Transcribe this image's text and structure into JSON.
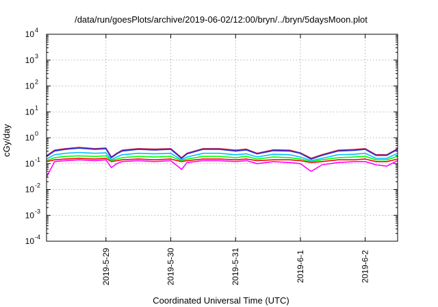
{
  "chart_data": {
    "type": "line",
    "title": "/data/run/goesPlots/archive/2019-06-02/12:00/bryn/../bryn/5daysMoon.plot",
    "xlabel": "Coordinated Universal Time (UTC)",
    "ylabel": "cGy/day",
    "yscale": "log",
    "ylim": [
      0.0001,
      10000
    ],
    "y_ticks": [
      {
        "base": "10",
        "exp": "-4",
        "value": 0.0001
      },
      {
        "base": "10",
        "exp": "-3",
        "value": 0.001
      },
      {
        "base": "10",
        "exp": "-2",
        "value": 0.01
      },
      {
        "base": "10",
        "exp": "-1",
        "value": 0.1
      },
      {
        "base": "10",
        "exp": "0",
        "value": 1
      },
      {
        "base": "10",
        "exp": "1",
        "value": 10
      },
      {
        "base": "10",
        "exp": "2",
        "value": 100
      },
      {
        "base": "10",
        "exp": "3",
        "value": 1000
      },
      {
        "base": "10",
        "exp": "4",
        "value": 10000
      }
    ],
    "x_range": [
      "2019-05-28T02:00",
      "2019-06-02T12:00"
    ],
    "x_ticks": [
      "2019-5-29",
      "2019-5-30",
      "2019-5-31",
      "2019-6-1",
      "2019-6-2"
    ],
    "grid": true,
    "legend": "none",
    "series": [
      {
        "color": "#ff00ff",
        "x": [
          "2019-05-28T02:00",
          "2019-05-28T05:00",
          "2019-05-28T09:00",
          "2019-05-28T14:00",
          "2019-05-28T20:00",
          "2019-05-29T00:00",
          "2019-05-29T02:00",
          "2019-05-29T04:00",
          "2019-05-29T06:00",
          "2019-05-29T12:00",
          "2019-05-29T18:00",
          "2019-05-30T00:00",
          "2019-05-30T04:00",
          "2019-05-30T06:00",
          "2019-05-30T12:00",
          "2019-05-30T18:00",
          "2019-05-31T00:00",
          "2019-05-31T04:00",
          "2019-05-31T08:00",
          "2019-05-31T14:00",
          "2019-05-31T20:00",
          "2019-06-01T00:00",
          "2019-06-01T04:00",
          "2019-06-01T08:00",
          "2019-06-01T14:00",
          "2019-06-01T20:00",
          "2019-06-02T00:00",
          "2019-06-02T04:00",
          "2019-06-02T08:00",
          "2019-06-02T12:00"
        ],
        "values": [
          0.03,
          0.12,
          0.13,
          0.14,
          0.13,
          0.14,
          0.07,
          0.1,
          0.12,
          0.13,
          0.12,
          0.13,
          0.06,
          0.11,
          0.13,
          0.13,
          0.12,
          0.13,
          0.1,
          0.12,
          0.11,
          0.1,
          0.05,
          0.09,
          0.11,
          0.12,
          0.12,
          0.09,
          0.08,
          0.13
        ]
      },
      {
        "color": "#ff0000",
        "x": [
          "2019-05-28T02:00",
          "2019-05-28T05:00",
          "2019-05-28T09:00",
          "2019-05-28T14:00",
          "2019-05-28T20:00",
          "2019-05-29T00:00",
          "2019-05-29T02:00",
          "2019-05-29T04:00",
          "2019-05-29T06:00",
          "2019-05-29T12:00",
          "2019-05-29T18:00",
          "2019-05-30T00:00",
          "2019-05-30T04:00",
          "2019-05-30T06:00",
          "2019-05-30T12:00",
          "2019-05-30T18:00",
          "2019-05-31T00:00",
          "2019-05-31T04:00",
          "2019-05-31T08:00",
          "2019-05-31T14:00",
          "2019-05-31T20:00",
          "2019-06-01T00:00",
          "2019-06-01T04:00",
          "2019-06-01T08:00",
          "2019-06-01T14:00",
          "2019-06-01T20:00",
          "2019-06-02T00:00",
          "2019-06-02T04:00",
          "2019-06-02T08:00",
          "2019-06-02T12:00"
        ],
        "values": [
          0.12,
          0.14,
          0.15,
          0.16,
          0.15,
          0.16,
          0.12,
          0.13,
          0.14,
          0.15,
          0.14,
          0.15,
          0.12,
          0.13,
          0.15,
          0.15,
          0.14,
          0.15,
          0.13,
          0.14,
          0.14,
          0.13,
          0.11,
          0.12,
          0.14,
          0.14,
          0.15,
          0.12,
          0.12,
          0.15
        ]
      },
      {
        "color": "#00ff00",
        "x": [
          "2019-05-28T02:00",
          "2019-05-28T05:00",
          "2019-05-28T09:00",
          "2019-05-28T14:00",
          "2019-05-28T20:00",
          "2019-05-29T00:00",
          "2019-05-29T02:00",
          "2019-05-29T04:00",
          "2019-05-29T06:00",
          "2019-05-29T12:00",
          "2019-05-29T18:00",
          "2019-05-30T00:00",
          "2019-05-30T04:00",
          "2019-05-30T06:00",
          "2019-05-30T12:00",
          "2019-05-30T18:00",
          "2019-05-31T00:00",
          "2019-05-31T04:00",
          "2019-05-31T08:00",
          "2019-05-31T14:00",
          "2019-05-31T20:00",
          "2019-06-01T00:00",
          "2019-06-01T04:00",
          "2019-06-01T08:00",
          "2019-06-01T14:00",
          "2019-06-01T20:00",
          "2019-06-02T00:00",
          "2019-06-02T04:00",
          "2019-06-02T08:00",
          "2019-06-02T12:00"
        ],
        "values": [
          0.13,
          0.17,
          0.19,
          0.2,
          0.19,
          0.2,
          0.13,
          0.15,
          0.17,
          0.19,
          0.18,
          0.19,
          0.13,
          0.15,
          0.19,
          0.19,
          0.17,
          0.19,
          0.15,
          0.18,
          0.17,
          0.15,
          0.12,
          0.14,
          0.17,
          0.18,
          0.19,
          0.14,
          0.14,
          0.19
        ]
      },
      {
        "color": "#00bfff",
        "x": [
          "2019-05-28T02:00",
          "2019-05-28T05:00",
          "2019-05-28T09:00",
          "2019-05-28T14:00",
          "2019-05-28T20:00",
          "2019-05-29T00:00",
          "2019-05-29T02:00",
          "2019-05-29T04:00",
          "2019-05-29T06:00",
          "2019-05-29T12:00",
          "2019-05-29T18:00",
          "2019-05-30T00:00",
          "2019-05-30T04:00",
          "2019-05-30T06:00",
          "2019-05-30T12:00",
          "2019-05-30T18:00",
          "2019-05-31T00:00",
          "2019-05-31T04:00",
          "2019-05-31T08:00",
          "2019-05-31T14:00",
          "2019-05-31T20:00",
          "2019-06-01T00:00",
          "2019-06-01T04:00",
          "2019-06-01T08:00",
          "2019-06-01T14:00",
          "2019-06-01T20:00",
          "2019-06-02T00:00",
          "2019-06-02T04:00",
          "2019-06-02T08:00",
          "2019-06-02T12:00"
        ],
        "values": [
          0.15,
          0.22,
          0.25,
          0.27,
          0.25,
          0.26,
          0.14,
          0.18,
          0.22,
          0.25,
          0.24,
          0.25,
          0.14,
          0.18,
          0.25,
          0.25,
          0.22,
          0.24,
          0.18,
          0.23,
          0.22,
          0.18,
          0.13,
          0.16,
          0.22,
          0.23,
          0.25,
          0.16,
          0.16,
          0.25
        ]
      },
      {
        "color": "#ff0000",
        "x": [
          "2019-05-28T02:00",
          "2019-05-28T05:00",
          "2019-05-28T09:00",
          "2019-05-28T14:00",
          "2019-05-28T20:00",
          "2019-05-29T00:00",
          "2019-05-29T02:00",
          "2019-05-29T04:00",
          "2019-05-29T06:00",
          "2019-05-29T12:00",
          "2019-05-29T18:00",
          "2019-05-30T00:00",
          "2019-05-30T04:00",
          "2019-05-30T06:00",
          "2019-05-30T12:00",
          "2019-05-30T18:00",
          "2019-05-31T00:00",
          "2019-05-31T04:00",
          "2019-05-31T08:00",
          "2019-05-31T14:00",
          "2019-05-31T20:00",
          "2019-06-01T00:00",
          "2019-06-01T04:00",
          "2019-06-01T08:00",
          "2019-06-01T14:00",
          "2019-06-01T20:00",
          "2019-06-02T00:00",
          "2019-06-02T04:00",
          "2019-06-02T08:00",
          "2019-06-02T12:00"
        ],
        "values": [
          0.2,
          0.33,
          0.38,
          0.42,
          0.38,
          0.4,
          0.18,
          0.25,
          0.33,
          0.38,
          0.36,
          0.38,
          0.17,
          0.25,
          0.38,
          0.38,
          0.33,
          0.36,
          0.25,
          0.34,
          0.33,
          0.26,
          0.16,
          0.22,
          0.33,
          0.35,
          0.38,
          0.22,
          0.22,
          0.38
        ]
      },
      {
        "color": "#3333cc",
        "x": [
          "2019-05-28T02:00",
          "2019-05-28T05:00",
          "2019-05-28T09:00",
          "2019-05-28T14:00",
          "2019-05-28T20:00",
          "2019-05-29T00:00",
          "2019-05-29T02:00",
          "2019-05-29T04:00",
          "2019-05-29T06:00",
          "2019-05-29T12:00",
          "2019-05-29T18:00",
          "2019-05-30T00:00",
          "2019-05-30T04:00",
          "2019-05-30T06:00",
          "2019-05-30T12:00",
          "2019-05-30T18:00",
          "2019-05-31T00:00",
          "2019-05-31T04:00",
          "2019-05-31T08:00",
          "2019-05-31T14:00",
          "2019-05-31T20:00",
          "2019-06-01T00:00",
          "2019-06-01T04:00",
          "2019-06-01T08:00",
          "2019-06-01T14:00",
          "2019-06-01T20:00",
          "2019-06-02T00:00",
          "2019-06-02T04:00",
          "2019-06-02T08:00",
          "2019-06-02T12:00"
        ],
        "values": [
          0.19,
          0.31,
          0.36,
          0.4,
          0.36,
          0.38,
          0.17,
          0.24,
          0.31,
          0.36,
          0.34,
          0.36,
          0.16,
          0.24,
          0.36,
          0.36,
          0.31,
          0.34,
          0.24,
          0.32,
          0.31,
          0.25,
          0.15,
          0.21,
          0.31,
          0.33,
          0.36,
          0.21,
          0.21,
          0.36
        ]
      }
    ]
  }
}
